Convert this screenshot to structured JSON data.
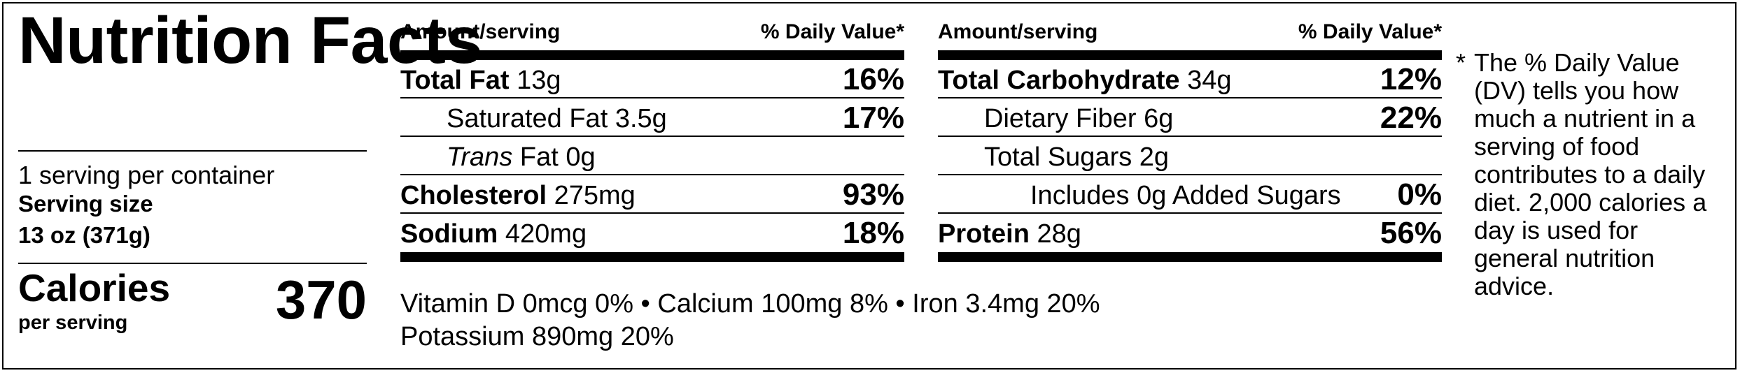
{
  "title": "Nutrition Facts",
  "servings_per_container": "1 serving per container",
  "serving_size_label": "Serving size",
  "serving_size_value": "13 oz (371g)",
  "calories": {
    "label": "Calories",
    "sub": "per serving",
    "value": "370"
  },
  "table_headers": {
    "amount": "Amount/serving",
    "daily_value": "% Daily Value*"
  },
  "left_table": [
    {
      "name": "Total Fat",
      "amount": "13g",
      "dv": "16%"
    },
    {
      "name": "Saturated Fat",
      "amount": "3.5g",
      "dv": "17%"
    },
    {
      "name_italic": "Trans",
      "name": "Fat",
      "amount": "0g",
      "dv": ""
    },
    {
      "name": "Cholesterol",
      "amount": "275mg",
      "dv": "93%"
    },
    {
      "name": "Sodium",
      "amount": "420mg",
      "dv": "18%"
    }
  ],
  "right_table": [
    {
      "name": "Total Carbohydrate",
      "amount": "34g",
      "dv": "12%"
    },
    {
      "name": "Dietary Fiber",
      "amount": "6g",
      "dv": "22%"
    },
    {
      "name": "Total Sugars",
      "amount": "2g",
      "dv": ""
    },
    {
      "name": "Includes 0g Added Sugars",
      "amount": "",
      "dv": "0%"
    },
    {
      "name": "Protein",
      "amount": "28g",
      "dv": "56%"
    }
  ],
  "vitamins": {
    "line1": "Vitamin D 0mcg 0% • Calcium 100mg 8% • Iron 3.4mg 20%",
    "line2": "Potassium 890mg 20%"
  },
  "footnote": {
    "star": "*",
    "text": "The % Daily Value (DV) tells you how much a nutrient in a serving of food contributes to a daily diet. 2,000 calories a day is used for general nutrition advice."
  }
}
